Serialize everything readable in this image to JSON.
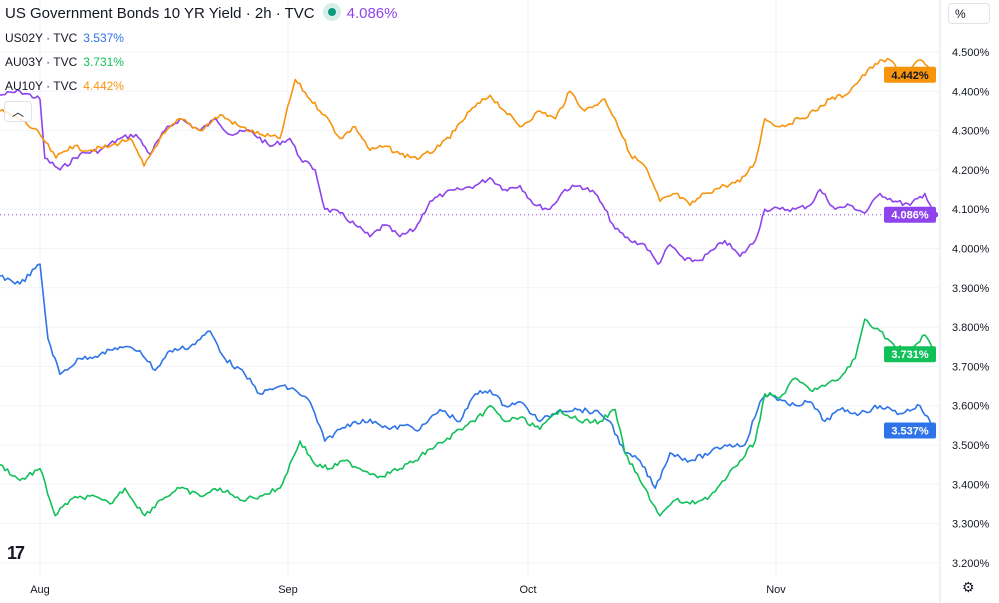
{
  "legend": {
    "main": {
      "title": "US Government Bonds 10 YR Yield · 2h · TVC",
      "value": "4.086%"
    },
    "items": [
      {
        "symbol": "US02Y · TVC",
        "value": "3.537%"
      },
      {
        "symbol": "AU03Y · TVC",
        "value": "3.731%"
      },
      {
        "symbol": "AU10Y · TVC",
        "value": "4.442%"
      }
    ]
  },
  "scale_button": "%",
  "collapse_icon": "chevron-up-icon",
  "settings_icon": "gear-icon",
  "logo": "TradingView",
  "chart_data": {
    "type": "line",
    "title": "US Government Bonds 10 YR Yield · 2h · TVC",
    "x_unit": "days since Aug 1",
    "x_ticks": [
      {
        "label": "Aug",
        "day": 0
      },
      {
        "label": "Sep",
        "day": 31
      },
      {
        "label": "Oct",
        "day": 61
      },
      {
        "label": "Nov",
        "day": 92
      }
    ],
    "y_ticks": [
      "4.500%",
      "4.400%",
      "4.300%",
      "4.200%",
      "4.100%",
      "4.000%",
      "3.900%",
      "3.800%",
      "3.700%",
      "3.600%",
      "3.500%",
      "3.400%",
      "3.300%",
      "3.200%"
    ],
    "ylim": [
      3.2,
      4.5
    ],
    "xlim": [
      -5,
      112
    ],
    "grid": true,
    "series": [
      {
        "name": "US10Y",
        "color": "#8e44ec",
        "last_label": "4.086%",
        "points": [
          [
            -5,
            4.39
          ],
          [
            -2.5,
            4.4
          ],
          [
            0,
            4.38
          ],
          [
            0.6,
            4.23
          ],
          [
            2.5,
            4.2
          ],
          [
            5,
            4.24
          ],
          [
            7.5,
            4.25
          ],
          [
            10,
            4.28
          ],
          [
            12,
            4.29
          ],
          [
            13.75,
            4.24
          ],
          [
            15.6,
            4.3
          ],
          [
            17.5,
            4.33
          ],
          [
            20,
            4.3
          ],
          [
            22,
            4.33
          ],
          [
            23.75,
            4.29
          ],
          [
            26.25,
            4.3
          ],
          [
            28.75,
            4.26
          ],
          [
            31.25,
            4.28
          ],
          [
            32.5,
            4.23
          ],
          [
            34.4,
            4.2
          ],
          [
            35.6,
            4.1
          ],
          [
            37.5,
            4.09
          ],
          [
            39.4,
            4.06
          ],
          [
            41.25,
            4.03
          ],
          [
            43.1,
            4.06
          ],
          [
            45,
            4.03
          ],
          [
            46.9,
            4.05
          ],
          [
            48.75,
            4.12
          ],
          [
            50.6,
            4.14
          ],
          [
            52.5,
            4.15
          ],
          [
            54.4,
            4.16
          ],
          [
            56.25,
            4.18
          ],
          [
            58.1,
            4.15
          ],
          [
            60,
            4.16
          ],
          [
            61.9,
            4.11
          ],
          [
            63.75,
            4.1
          ],
          [
            65.6,
            4.15
          ],
          [
            67.5,
            4.16
          ],
          [
            69.4,
            4.14
          ],
          [
            70.6,
            4.1
          ],
          [
            71.9,
            4.05
          ],
          [
            73.75,
            4.02
          ],
          [
            75.6,
            4.01
          ],
          [
            77.25,
            3.96
          ],
          [
            78.75,
            4.01
          ],
          [
            80.6,
            3.97
          ],
          [
            82.5,
            3.97
          ],
          [
            84.4,
            4.0
          ],
          [
            85.6,
            4.02
          ],
          [
            87.5,
            3.98
          ],
          [
            89.4,
            4.02
          ],
          [
            90.6,
            4.1
          ],
          [
            92.5,
            4.1
          ],
          [
            94.4,
            4.1
          ],
          [
            96.25,
            4.11
          ],
          [
            97.5,
            4.15
          ],
          [
            99.4,
            4.1
          ],
          [
            101.25,
            4.11
          ],
          [
            103.1,
            4.09
          ],
          [
            105,
            4.14
          ],
          [
            106.9,
            4.12
          ],
          [
            108.75,
            4.11
          ],
          [
            110.6,
            4.14
          ],
          [
            111.9,
            4.086
          ]
        ]
      },
      {
        "name": "AU10Y",
        "color": "#f7940c",
        "last_label": "4.442%",
        "points": [
          [
            -5,
            4.35
          ],
          [
            -2.5,
            4.33
          ],
          [
            0,
            4.29
          ],
          [
            2,
            4.23
          ],
          [
            3.75,
            4.26
          ],
          [
            6.25,
            4.25
          ],
          [
            8.75,
            4.26
          ],
          [
            11.25,
            4.28
          ],
          [
            13,
            4.21
          ],
          [
            15,
            4.28
          ],
          [
            17.5,
            4.33
          ],
          [
            20,
            4.3
          ],
          [
            22.5,
            4.34
          ],
          [
            25,
            4.31
          ],
          [
            27.5,
            4.29
          ],
          [
            30,
            4.28
          ],
          [
            31.9,
            4.43
          ],
          [
            33.75,
            4.38
          ],
          [
            35.6,
            4.34
          ],
          [
            37.5,
            4.28
          ],
          [
            39.4,
            4.31
          ],
          [
            41.25,
            4.25
          ],
          [
            43.1,
            4.26
          ],
          [
            45,
            4.24
          ],
          [
            47.5,
            4.23
          ],
          [
            50,
            4.26
          ],
          [
            51.9,
            4.3
          ],
          [
            53.75,
            4.35
          ],
          [
            56.25,
            4.39
          ],
          [
            58.1,
            4.35
          ],
          [
            60,
            4.31
          ],
          [
            62.5,
            4.35
          ],
          [
            64.4,
            4.33
          ],
          [
            66.25,
            4.4
          ],
          [
            68.1,
            4.35
          ],
          [
            70.6,
            4.38
          ],
          [
            71.9,
            4.33
          ],
          [
            73.75,
            4.24
          ],
          [
            75.6,
            4.21
          ],
          [
            77.5,
            4.12
          ],
          [
            79.4,
            4.14
          ],
          [
            81.25,
            4.11
          ],
          [
            83.1,
            4.14
          ],
          [
            85.6,
            4.16
          ],
          [
            87.5,
            4.17
          ],
          [
            89.4,
            4.22
          ],
          [
            90.6,
            4.33
          ],
          [
            92.5,
            4.31
          ],
          [
            95,
            4.33
          ],
          [
            96.9,
            4.35
          ],
          [
            98.75,
            4.38
          ],
          [
            100.6,
            4.39
          ],
          [
            102.5,
            4.43
          ],
          [
            104.4,
            4.47
          ],
          [
            106.25,
            4.48
          ],
          [
            108.1,
            4.44
          ],
          [
            110,
            4.48
          ],
          [
            111.9,
            4.442
          ]
        ]
      },
      {
        "name": "US02Y",
        "color": "#2e74e8",
        "last_label": "3.537%",
        "points": [
          [
            -5,
            3.93
          ],
          [
            -2.5,
            3.91
          ],
          [
            0,
            3.96
          ],
          [
            1,
            3.77
          ],
          [
            2.5,
            3.68
          ],
          [
            5,
            3.72
          ],
          [
            7.5,
            3.73
          ],
          [
            10,
            3.75
          ],
          [
            12.5,
            3.74
          ],
          [
            14.4,
            3.69
          ],
          [
            16.25,
            3.74
          ],
          [
            18.75,
            3.75
          ],
          [
            21.25,
            3.79
          ],
          [
            23.1,
            3.72
          ],
          [
            25.6,
            3.68
          ],
          [
            27.5,
            3.63
          ],
          [
            30,
            3.65
          ],
          [
            31.9,
            3.64
          ],
          [
            33.75,
            3.61
          ],
          [
            35.6,
            3.51
          ],
          [
            37.5,
            3.54
          ],
          [
            39.4,
            3.56
          ],
          [
            41.9,
            3.56
          ],
          [
            43.75,
            3.54
          ],
          [
            45.6,
            3.55
          ],
          [
            47.5,
            3.54
          ],
          [
            50,
            3.59
          ],
          [
            52.5,
            3.56
          ],
          [
            54.4,
            3.63
          ],
          [
            56.25,
            3.64
          ],
          [
            58.1,
            3.6
          ],
          [
            60,
            3.61
          ],
          [
            62.5,
            3.56
          ],
          [
            65,
            3.59
          ],
          [
            67.5,
            3.59
          ],
          [
            70,
            3.58
          ],
          [
            71.25,
            3.56
          ],
          [
            73.1,
            3.48
          ],
          [
            75,
            3.46
          ],
          [
            76.9,
            3.39
          ],
          [
            78.75,
            3.48
          ],
          [
            81.25,
            3.46
          ],
          [
            83.75,
            3.48
          ],
          [
            85.6,
            3.5
          ],
          [
            88.1,
            3.5
          ],
          [
            90,
            3.61
          ],
          [
            91.25,
            3.63
          ],
          [
            93.75,
            3.6
          ],
          [
            96.25,
            3.61
          ],
          [
            98.1,
            3.56
          ],
          [
            100,
            3.59
          ],
          [
            102.5,
            3.58
          ],
          [
            105,
            3.6
          ],
          [
            107.5,
            3.58
          ],
          [
            110,
            3.6
          ],
          [
            111.9,
            3.537
          ]
        ]
      },
      {
        "name": "AU03Y",
        "color": "#12c05a",
        "last_label": "3.731%",
        "points": [
          [
            -5,
            3.45
          ],
          [
            -2.5,
            3.41
          ],
          [
            0,
            3.44
          ],
          [
            1.9,
            3.32
          ],
          [
            3.75,
            3.36
          ],
          [
            6.25,
            3.37
          ],
          [
            8.75,
            3.35
          ],
          [
            10.6,
            3.39
          ],
          [
            13.1,
            3.32
          ],
          [
            15,
            3.36
          ],
          [
            17.5,
            3.39
          ],
          [
            20,
            3.37
          ],
          [
            22.5,
            3.39
          ],
          [
            25,
            3.36
          ],
          [
            27.5,
            3.37
          ],
          [
            30,
            3.39
          ],
          [
            32.5,
            3.51
          ],
          [
            34.4,
            3.45
          ],
          [
            36.25,
            3.44
          ],
          [
            38.1,
            3.46
          ],
          [
            40,
            3.44
          ],
          [
            42.5,
            3.42
          ],
          [
            45,
            3.44
          ],
          [
            46.9,
            3.46
          ],
          [
            48.75,
            3.49
          ],
          [
            50.6,
            3.51
          ],
          [
            52.5,
            3.54
          ],
          [
            54.4,
            3.56
          ],
          [
            56.25,
            3.6
          ],
          [
            58.1,
            3.56
          ],
          [
            60,
            3.57
          ],
          [
            62.5,
            3.54
          ],
          [
            65,
            3.59
          ],
          [
            67.5,
            3.56
          ],
          [
            70,
            3.56
          ],
          [
            71.9,
            3.59
          ],
          [
            73.1,
            3.48
          ],
          [
            75,
            3.41
          ],
          [
            77.5,
            3.32
          ],
          [
            79.4,
            3.36
          ],
          [
            81.25,
            3.35
          ],
          [
            83.75,
            3.37
          ],
          [
            85.6,
            3.41
          ],
          [
            87.5,
            3.46
          ],
          [
            89.4,
            3.51
          ],
          [
            90.6,
            3.63
          ],
          [
            92.5,
            3.62
          ],
          [
            94.4,
            3.67
          ],
          [
            96.25,
            3.64
          ],
          [
            98.1,
            3.65
          ],
          [
            100,
            3.67
          ],
          [
            101.9,
            3.72
          ],
          [
            103.1,
            3.82
          ],
          [
            105,
            3.79
          ],
          [
            106.9,
            3.75
          ],
          [
            108.75,
            3.74
          ],
          [
            110.6,
            3.78
          ],
          [
            111.9,
            3.731
          ]
        ]
      }
    ]
  }
}
